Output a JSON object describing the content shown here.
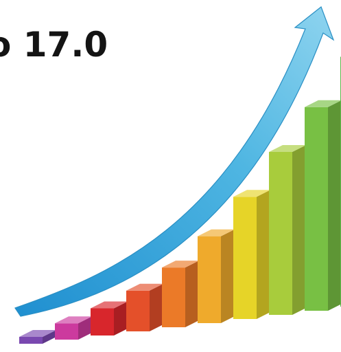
{
  "headline": {
    "text": "o 17.0"
  },
  "illustration": {
    "arrow_color": "#36a8d8",
    "bar_colors": [
      "#7a48b0",
      "#cc3a9e",
      "#d8262c",
      "#e4502a",
      "#eb7a28",
      "#efaa2c",
      "#e6d428",
      "#a8cc3c",
      "#78c044",
      "#5cb84a"
    ],
    "bar_relative_heights": [
      0.02,
      0.06,
      0.1,
      0.15,
      0.22,
      0.32,
      0.45,
      0.6,
      0.75,
      0.92
    ]
  }
}
